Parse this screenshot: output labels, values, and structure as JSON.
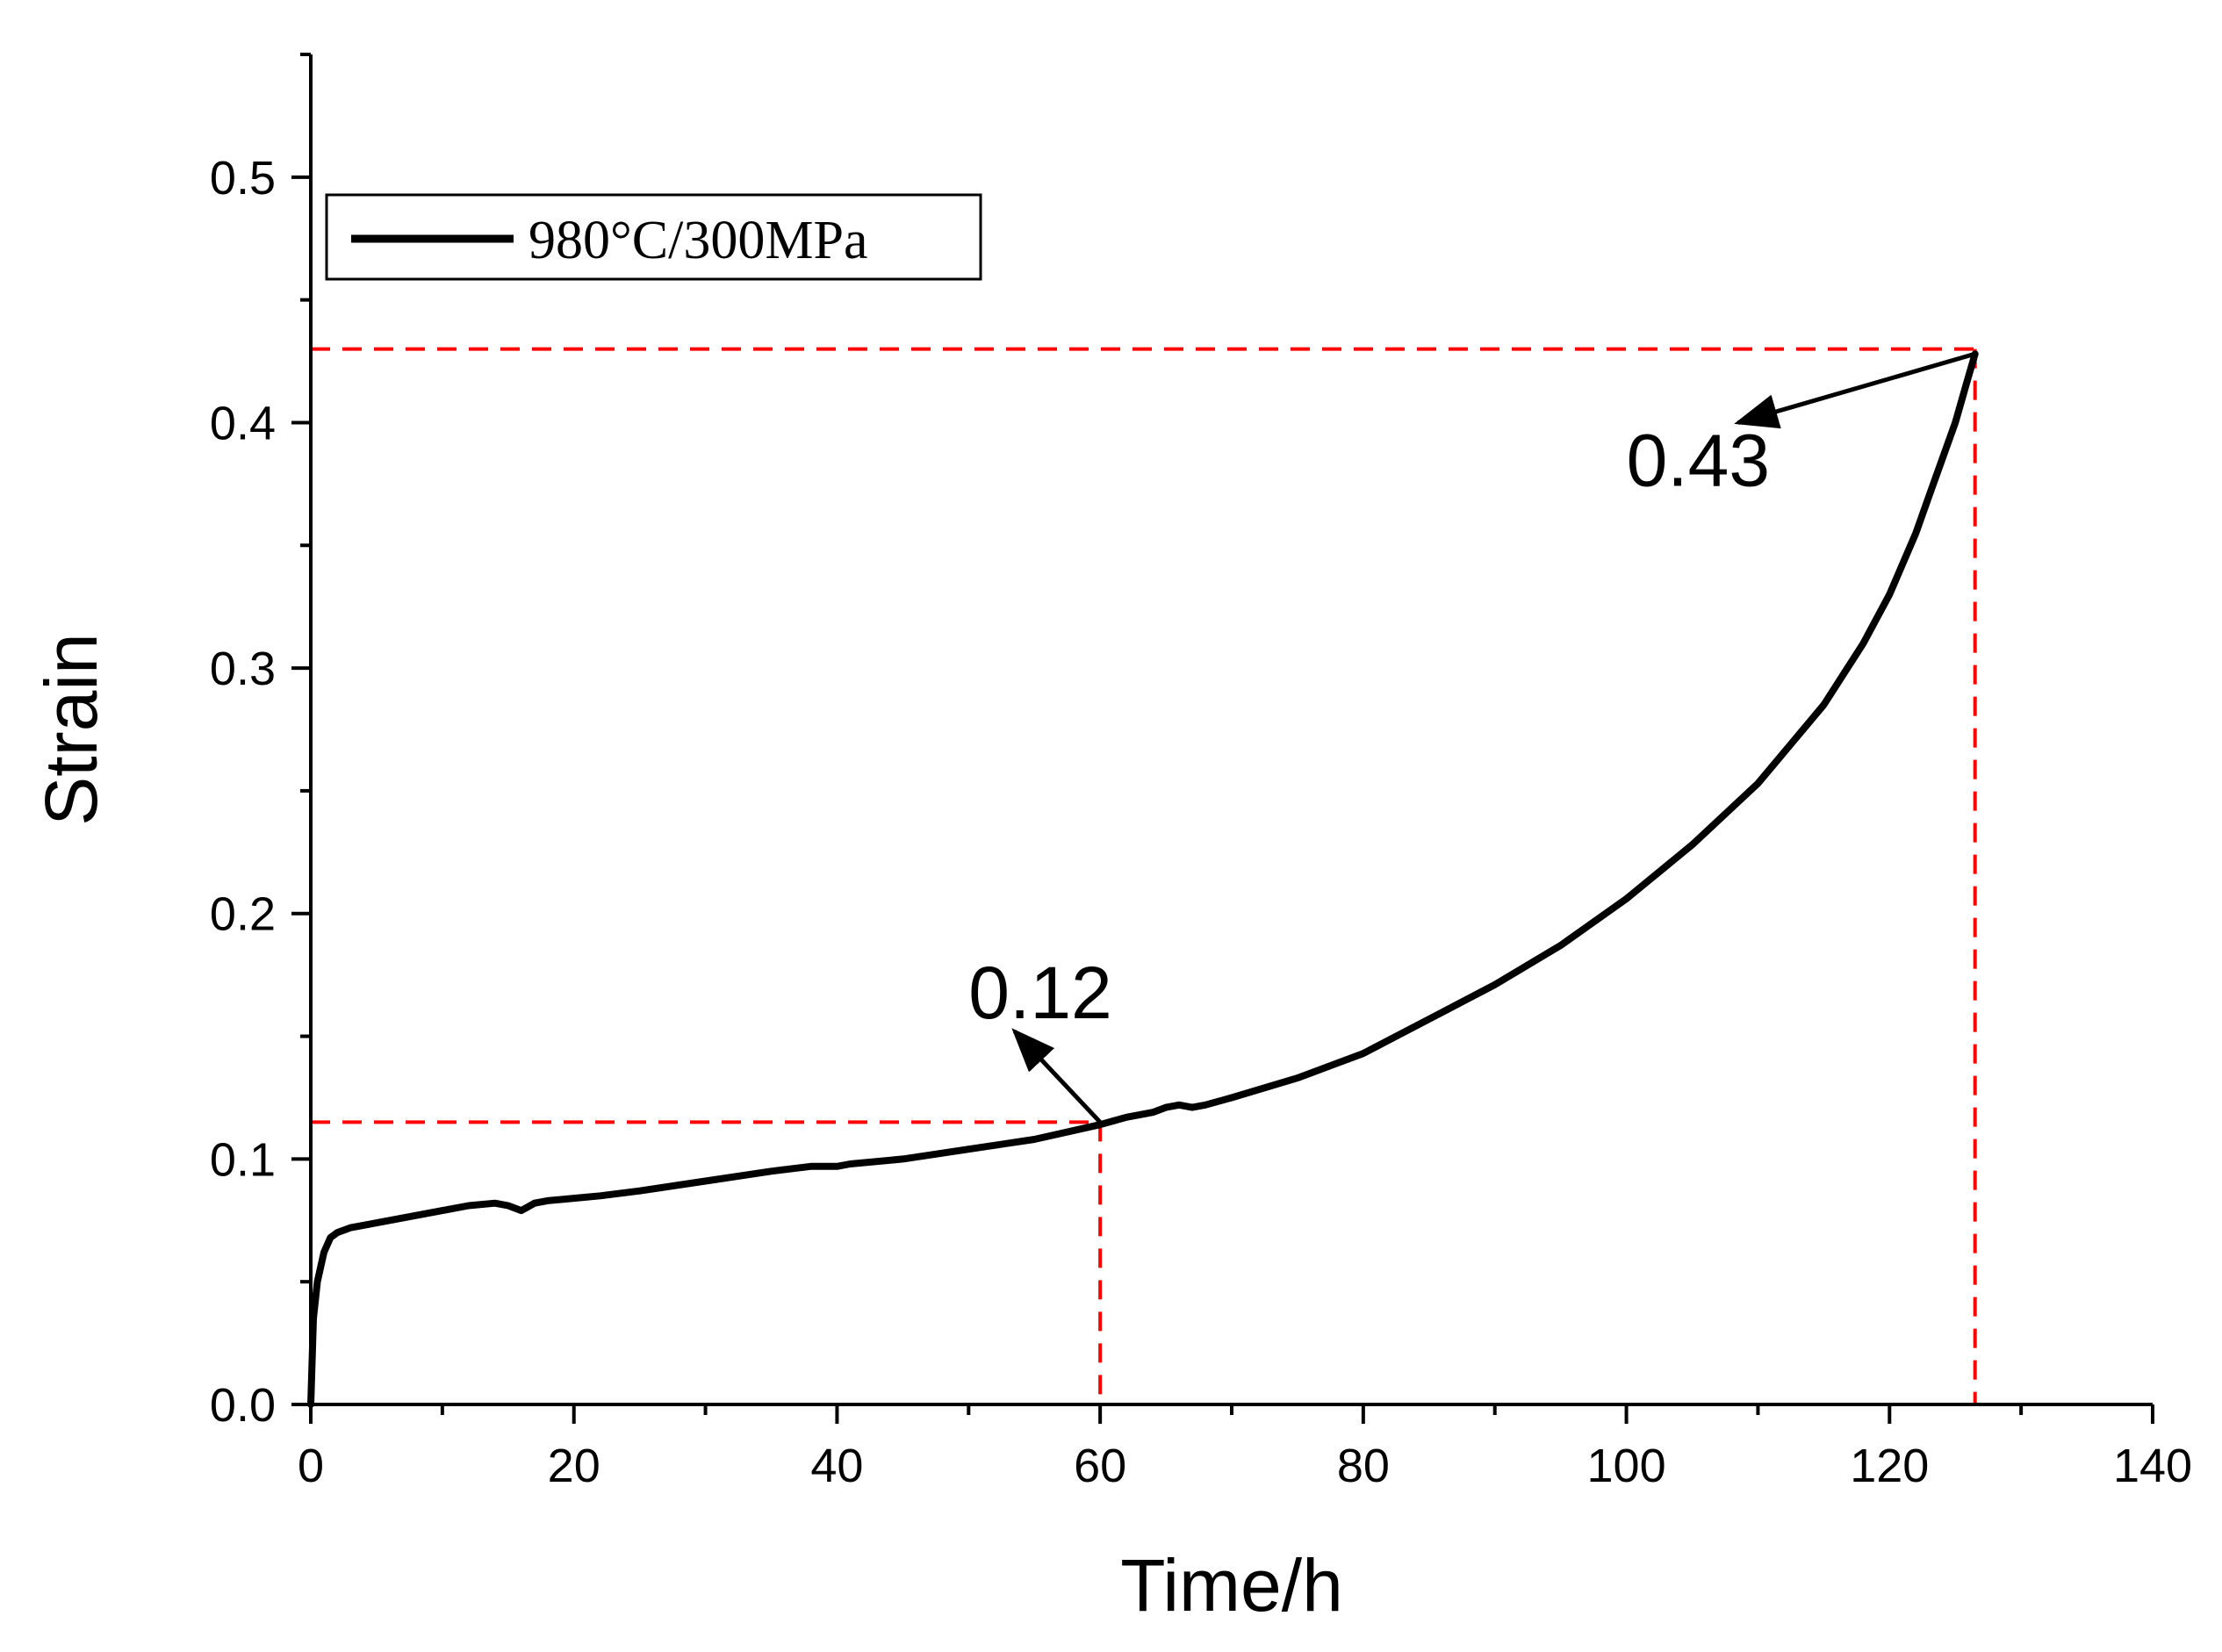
{
  "chart_data": {
    "type": "line",
    "title": "",
    "xlabel": "Time/h",
    "ylabel": "Strain",
    "xlim": [
      0,
      140
    ],
    "ylim": [
      0,
      0.55
    ],
    "x_ticks": [
      0,
      20,
      40,
      60,
      80,
      100,
      120,
      140
    ],
    "y_ticks": [
      0.0,
      0.1,
      0.2,
      0.3,
      0.4,
      0.5
    ],
    "x_tick_labels": [
      "0",
      "20",
      "40",
      "60",
      "80",
      "100",
      "120",
      "140"
    ],
    "y_tick_labels": [
      "0.0",
      "0.1",
      "0.2",
      "0.3",
      "0.4",
      "0.5"
    ],
    "grid": false,
    "legend": {
      "position": "top-left",
      "entries": [
        "980°C/300MPa"
      ]
    },
    "series": [
      {
        "name": "980°C/300MPa",
        "color": "#000000",
        "x": [
          0,
          0.2,
          0.5,
          1,
          1.5,
          2,
          3,
          4,
          6,
          8,
          10,
          12,
          14,
          15,
          16,
          17,
          18,
          20,
          22,
          25,
          30,
          35,
          38,
          40,
          41,
          45,
          50,
          55,
          60,
          62,
          64,
          65,
          66,
          67,
          68,
          70,
          75,
          80,
          85,
          90,
          95,
          100,
          105,
          110,
          115,
          118,
          120,
          122,
          123,
          124,
          125,
          125.8,
          126.5
        ],
        "y": [
          0,
          0.035,
          0.05,
          0.062,
          0.068,
          0.07,
          0.072,
          0.073,
          0.075,
          0.077,
          0.079,
          0.081,
          0.082,
          0.081,
          0.079,
          0.082,
          0.083,
          0.084,
          0.085,
          0.087,
          0.091,
          0.095,
          0.097,
          0.097,
          0.098,
          0.1,
          0.104,
          0.108,
          0.114,
          0.117,
          0.119,
          0.121,
          0.122,
          0.121,
          0.122,
          0.125,
          0.133,
          0.143,
          0.157,
          0.171,
          0.187,
          0.206,
          0.228,
          0.253,
          0.285,
          0.31,
          0.33,
          0.355,
          0.37,
          0.385,
          0.4,
          0.415,
          0.428
        ]
      }
    ],
    "reference_lines": [
      {
        "x_from": 0,
        "x_to": 126.5,
        "y_from": 0.43,
        "y_to": 0.43,
        "color": "#ff0000",
        "style": "dashed"
      },
      {
        "x_from": 126.5,
        "x_to": 126.5,
        "y_from": 0.43,
        "y_to": 0,
        "color": "#ff0000",
        "style": "dashed"
      },
      {
        "x_from": 0,
        "x_to": 60,
        "y_from": 0.115,
        "y_to": 0.115,
        "color": "#ff0000",
        "style": "dashed"
      },
      {
        "x_from": 60,
        "x_to": 60,
        "y_from": 0.115,
        "y_to": 0,
        "color": "#ff0000",
        "style": "dashed"
      }
    ],
    "annotations": [
      {
        "text": "0.12",
        "point_x": 60,
        "point_y": 0.115,
        "arrow_to_x": 53.5,
        "arrow_to_y": 0.152,
        "text_x": 50,
        "text_y": 0.168
      },
      {
        "text": "0.43",
        "point_x": 126.5,
        "point_y": 0.428,
        "arrow_to_x": 108.5,
        "arrow_to_y": 0.4,
        "text_x": 100,
        "text_y": 0.385
      }
    ]
  }
}
